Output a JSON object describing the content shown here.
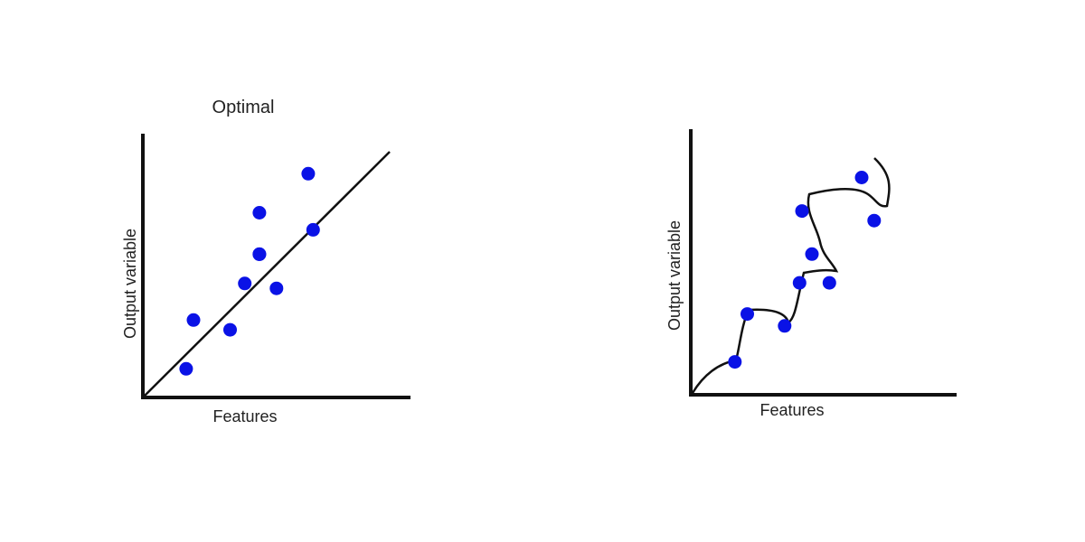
{
  "chart_data": [
    {
      "type": "scatter",
      "title": "Optimal",
      "xlabel": "Features",
      "ylabel": "Output variable",
      "xlim": [
        0,
        10
      ],
      "ylim": [
        0,
        10
      ],
      "grid": false,
      "fit": {
        "type": "linear",
        "slope": 1.0,
        "intercept": 0.0
      },
      "series": [
        {
          "x": [
            1.7,
            2.0,
            3.5,
            4.1,
            4.7,
            4.7,
            4.7,
            5.4,
            6.7,
            6.9
          ],
          "y": [
            1.1,
            3.1,
            2.7,
            4.6,
            5.8,
            7.5,
            5.8,
            4.4,
            9.1,
            6.8
          ]
        }
      ],
      "colors": {
        "points": "#0a12e6",
        "line": "#111111",
        "axes": "#111111"
      }
    },
    {
      "type": "scatter",
      "title": "",
      "xlabel": "Features",
      "ylabel": "Output variable",
      "xlim": [
        0,
        10
      ],
      "ylim": [
        0,
        10
      ],
      "grid": false,
      "fit": {
        "type": "interpolating-curve"
      },
      "series": [
        {
          "x": [
            1.7,
            2.2,
            3.7,
            4.3,
            4.4,
            4.8,
            5.5,
            6.8,
            7.3
          ],
          "y": [
            1.3,
            3.3,
            2.8,
            4.6,
            7.6,
            5.8,
            4.6,
            9.0,
            7.2
          ]
        }
      ],
      "colors": {
        "points": "#0a12e6",
        "line": "#111111",
        "axes": "#111111"
      }
    }
  ]
}
